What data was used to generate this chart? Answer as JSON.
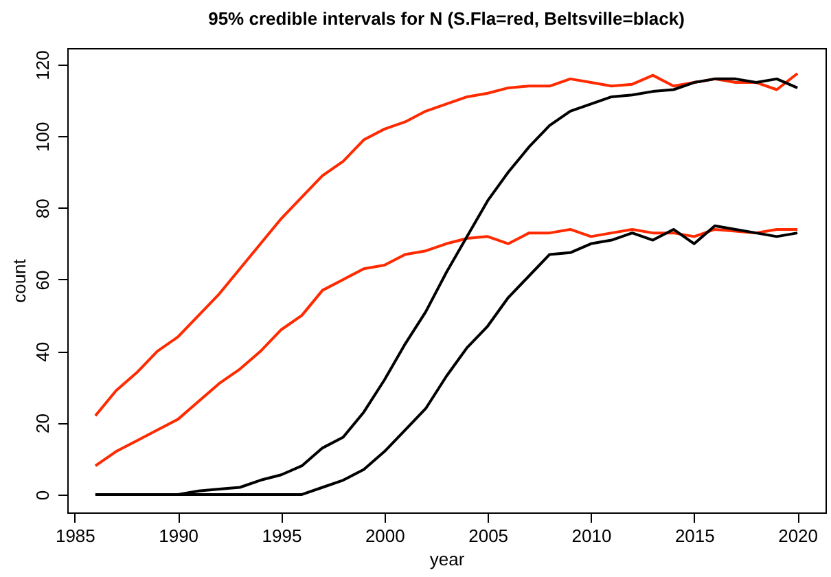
{
  "chart_data": {
    "type": "line",
    "title": "95% credible intervals for N (S.Fla=red, Beltsville=black)",
    "xlabel": "year",
    "ylabel": "count",
    "x": [
      1986,
      1987,
      1988,
      1989,
      1990,
      1991,
      1992,
      1993,
      1994,
      1995,
      1996,
      1997,
      1998,
      1999,
      2000,
      2001,
      2002,
      2003,
      2004,
      2005,
      2006,
      2007,
      2008,
      2009,
      2010,
      2011,
      2012,
      2013,
      2014,
      2015,
      2016,
      2017,
      2018,
      2019,
      2020
    ],
    "series": [
      {
        "color": "#ff2a00",
        "values": [
          22,
          29,
          34,
          40,
          44,
          50,
          56,
          63,
          70,
          77,
          83,
          89,
          93,
          99,
          102,
          104,
          107,
          109,
          111,
          112,
          113.5,
          114,
          114,
          116,
          115,
          114,
          114.5,
          117,
          114,
          115,
          116,
          115,
          115,
          113,
          117.5
        ]
      },
      {
        "color": "#ff2a00",
        "values": [
          8,
          12,
          15,
          18,
          21,
          26,
          31,
          35,
          40,
          46,
          50,
          57,
          60,
          63,
          64,
          67,
          68,
          70,
          71.5,
          72,
          70,
          73,
          73,
          74,
          72,
          73,
          74,
          73,
          73,
          72,
          74,
          73.5,
          73,
          74,
          74
        ]
      },
      {
        "color": "#000000",
        "values": [
          0,
          0,
          0,
          0,
          0,
          1,
          1.5,
          2,
          4,
          5.5,
          8,
          13,
          16,
          23,
          32,
          42,
          51,
          62,
          72,
          82,
          90,
          97,
          103,
          107,
          109,
          111,
          111.5,
          112.5,
          113,
          115,
          116,
          116,
          115,
          116,
          113.5
        ]
      },
      {
        "color": "#000000",
        "values": [
          0,
          0,
          0,
          0,
          0,
          0,
          0,
          0,
          0,
          0,
          0,
          2,
          4,
          7,
          12,
          18,
          24,
          33,
          41,
          47,
          55,
          61,
          67,
          67.5,
          70,
          71,
          73,
          71,
          74,
          70,
          75,
          74,
          73,
          72,
          73
        ]
      }
    ],
    "xlim": [
      1984.64,
      2021.36
    ],
    "ylim": [
      -5,
      124.6
    ],
    "xticks": [
      1985,
      1990,
      1995,
      2000,
      2005,
      2010,
      2015,
      2020
    ],
    "yticks": [
      0,
      20,
      40,
      60,
      80,
      100,
      120
    ],
    "grid": false,
    "marker": "none",
    "line_style": "solid"
  }
}
